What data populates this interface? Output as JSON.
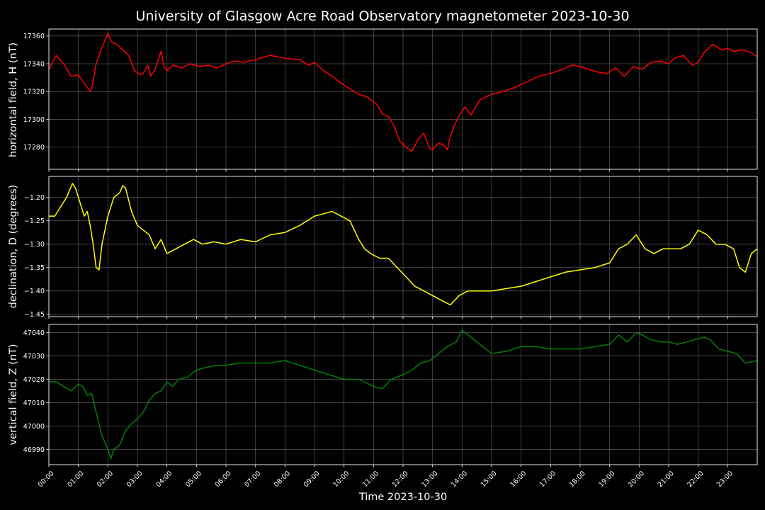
{
  "figure": {
    "title": "University of Glasgow Acre Road Observatory magnetometer 2023-10-30",
    "background": "#000000",
    "foreground": "#ffffff"
  },
  "chart_data": [
    {
      "type": "line",
      "ylabel": "horizontal field, H (nT)",
      "ylim": [
        17264,
        17365
      ],
      "yticks": [
        17280,
        17300,
        17320,
        17340,
        17360
      ],
      "ytick_labels": [
        "17280",
        "17300",
        "17320",
        "17340",
        "17360"
      ],
      "grid": true,
      "xlim": [
        0,
        24
      ],
      "series": [
        {
          "color": "#ff0000",
          "x": [
            0,
            0.25,
            0.5,
            0.75,
            1.0,
            1.2,
            1.4,
            1.45,
            1.6,
            1.8,
            2.0,
            2.1,
            2.3,
            2.5,
            2.7,
            2.9,
            3.1,
            3.2,
            3.35,
            3.45,
            3.6,
            3.8,
            3.9,
            4.0,
            4.2,
            4.5,
            4.8,
            5.1,
            5.4,
            5.7,
            6.0,
            6.3,
            6.6,
            7.0,
            7.5,
            8.0,
            8.5,
            8.8,
            9.0,
            9.3,
            9.6,
            9.9,
            10.2,
            10.5,
            10.8,
            11.1,
            11.3,
            11.5,
            11.7,
            11.9,
            12.1,
            12.3,
            12.5,
            12.7,
            12.9,
            13.0,
            13.2,
            13.4,
            13.5,
            13.6,
            13.75,
            13.9,
            14.1,
            14.3,
            14.6,
            15.0,
            15.4,
            15.8,
            16.2,
            16.6,
            17.0,
            17.4,
            17.7,
            18.0,
            18.3,
            18.6,
            18.9,
            19.2,
            19.5,
            19.8,
            20.1,
            20.4,
            20.7,
            21.0,
            21.2,
            21.5,
            21.8,
            22.0,
            22.2,
            22.5,
            22.8,
            23.0,
            23.2,
            23.5,
            23.8,
            24.0
          ],
          "y": [
            17336,
            17346,
            17340,
            17331,
            17332,
            17326,
            17320,
            17322,
            17340,
            17352,
            17362,
            17356,
            17354,
            17350,
            17346,
            17335,
            17332,
            17333,
            17339,
            17331,
            17336,
            17349,
            17338,
            17335,
            17339,
            17337,
            17340,
            17338,
            17339,
            17337,
            17340,
            17342,
            17341,
            17343,
            17346,
            17344,
            17343,
            17339,
            17341,
            17335,
            17331,
            17326,
            17322,
            17318,
            17316,
            17311,
            17304,
            17302,
            17295,
            17284,
            17280,
            17277,
            17285,
            17290,
            17279,
            17278,
            17283,
            17281,
            17278,
            17288,
            17296,
            17303,
            17309,
            17303,
            17314,
            17318,
            17320,
            17323,
            17327,
            17331,
            17333,
            17336,
            17339,
            17338,
            17336,
            17334,
            17333,
            17337,
            17331,
            17338,
            17336,
            17341,
            17342,
            17340,
            17344,
            17346,
            17339,
            17341,
            17348,
            17354,
            17350,
            17351,
            17349,
            17350,
            17348,
            17345
          ]
        }
      ]
    },
    {
      "type": "line",
      "ylabel": "declination, D (degrees)",
      "ylim": [
        -1.455,
        -1.155
      ],
      "yticks": [
        -1.45,
        -1.4,
        -1.35,
        -1.3,
        -1.25,
        -1.2
      ],
      "ytick_labels": [
        "−1.45",
        "−1.40",
        "−1.35",
        "−1.30",
        "−1.25",
        "−1.20"
      ],
      "grid": true,
      "xlim": [
        0,
        24
      ],
      "series": [
        {
          "color": "#ffff00",
          "x": [
            0,
            0.2,
            0.4,
            0.6,
            0.8,
            0.9,
            1.0,
            1.1,
            1.2,
            1.3,
            1.4,
            1.5,
            1.6,
            1.7,
            1.8,
            2.0,
            2.2,
            2.4,
            2.5,
            2.6,
            2.8,
            3.0,
            3.2,
            3.4,
            3.6,
            3.8,
            4.0,
            4.3,
            4.6,
            4.9,
            5.2,
            5.6,
            6.0,
            6.5,
            7.0,
            7.5,
            8.0,
            8.5,
            9.0,
            9.3,
            9.6,
            9.9,
            10.2,
            10.5,
            10.7,
            10.9,
            11.2,
            11.5,
            11.8,
            12.1,
            12.4,
            12.7,
            13.0,
            13.3,
            13.6,
            13.9,
            14.2,
            14.6,
            15.0,
            15.5,
            16.0,
            16.5,
            17.0,
            17.5,
            18.0,
            18.5,
            19.0,
            19.3,
            19.6,
            19.9,
            20.2,
            20.5,
            20.8,
            21.1,
            21.4,
            21.7,
            22.0,
            22.3,
            22.6,
            22.9,
            23.2,
            23.4,
            23.6,
            23.8,
            24.0
          ],
          "y": [
            -1.24,
            -1.24,
            -1.22,
            -1.2,
            -1.17,
            -1.18,
            -1.2,
            -1.22,
            -1.24,
            -1.23,
            -1.26,
            -1.3,
            -1.35,
            -1.355,
            -1.3,
            -1.24,
            -1.2,
            -1.19,
            -1.175,
            -1.18,
            -1.23,
            -1.26,
            -1.27,
            -1.28,
            -1.31,
            -1.29,
            -1.32,
            -1.31,
            -1.3,
            -1.29,
            -1.3,
            -1.295,
            -1.3,
            -1.29,
            -1.295,
            -1.28,
            -1.275,
            -1.26,
            -1.24,
            -1.235,
            -1.23,
            -1.24,
            -1.25,
            -1.29,
            -1.31,
            -1.32,
            -1.33,
            -1.33,
            -1.35,
            -1.37,
            -1.39,
            -1.4,
            -1.41,
            -1.42,
            -1.43,
            -1.41,
            -1.4,
            -1.4,
            -1.4,
            -1.395,
            -1.39,
            -1.38,
            -1.37,
            -1.36,
            -1.355,
            -1.35,
            -1.34,
            -1.31,
            -1.3,
            -1.28,
            -1.31,
            -1.32,
            -1.31,
            -1.31,
            -1.31,
            -1.3,
            -1.27,
            -1.28,
            -1.3,
            -1.3,
            -1.31,
            -1.35,
            -1.36,
            -1.32,
            -1.31
          ]
        }
      ]
    },
    {
      "type": "line",
      "ylabel": "vertical field, Z (nT)",
      "xlabel": "Time 2023-10-30",
      "ylim": [
        46983.5,
        47043.5
      ],
      "yticks": [
        46990,
        47000,
        47010,
        47020,
        47030,
        47040
      ],
      "ytick_labels": [
        "46990",
        "47000",
        "47010",
        "47020",
        "47030",
        "47040"
      ],
      "xticks": [
        0,
        1,
        2,
        3,
        4,
        5,
        6,
        7,
        8,
        9,
        10,
        11,
        12,
        13,
        14,
        15,
        16,
        17,
        18,
        19,
        20,
        21,
        22,
        23
      ],
      "xtick_labels": [
        "00:00",
        "01:00",
        "02:00",
        "03:00",
        "04:00",
        "05:00",
        "06:00",
        "07:00",
        "08:00",
        "09:00",
        "10:00",
        "11:00",
        "12:00",
        "13:00",
        "14:00",
        "15:00",
        "16:00",
        "17:00",
        "18:00",
        "19:00",
        "20:00",
        "21:00",
        "22:00",
        "23:00"
      ],
      "grid": true,
      "xlim": [
        0,
        24
      ],
      "series": [
        {
          "color": "#008000",
          "x": [
            0,
            0.25,
            0.5,
            0.75,
            1.0,
            1.15,
            1.3,
            1.45,
            1.6,
            1.8,
            2.0,
            2.1,
            2.2,
            2.4,
            2.6,
            2.8,
            3.0,
            3.2,
            3.4,
            3.6,
            3.8,
            4.0,
            4.2,
            4.4,
            4.7,
            5.0,
            5.3,
            5.7,
            6.0,
            6.5,
            7.0,
            7.5,
            8.0,
            8.5,
            9.0,
            9.5,
            10.0,
            10.5,
            11.0,
            11.3,
            11.6,
            12.0,
            12.3,
            12.6,
            12.9,
            13.2,
            13.5,
            13.8,
            14.0,
            14.3,
            14.6,
            15.0,
            15.5,
            16.0,
            16.5,
            17.0,
            17.5,
            18.0,
            18.5,
            19.0,
            19.3,
            19.6,
            19.9,
            20.1,
            20.4,
            20.7,
            21.0,
            21.3,
            21.6,
            21.9,
            22.2,
            22.4,
            22.7,
            23.0,
            23.3,
            23.6,
            24.0
          ],
          "y": [
            47019,
            47019,
            47017,
            47015,
            47018,
            47017,
            47013,
            47014,
            47006,
            46996,
            46990,
            46986,
            46990,
            46992,
            46998,
            47001,
            47003,
            47006,
            47011,
            47014,
            47015,
            47019,
            47017,
            47020,
            47021,
            47024,
            47025,
            47026,
            47026,
            47027,
            47027,
            47027,
            47028,
            47026,
            47024,
            47022,
            47020,
            47020,
            47017,
            47016,
            47020,
            47022,
            47024,
            47027,
            47028,
            47031,
            47034,
            47036,
            47041,
            47038,
            47035,
            47031,
            47032,
            47034,
            47034,
            47033,
            47033,
            47033,
            47034,
            47035,
            47039,
            47036,
            47040,
            47039,
            47037,
            47036,
            47036,
            47035,
            47036,
            47037,
            47038,
            47037,
            47033,
            47032,
            47031,
            47027,
            47028
          ]
        }
      ]
    }
  ]
}
